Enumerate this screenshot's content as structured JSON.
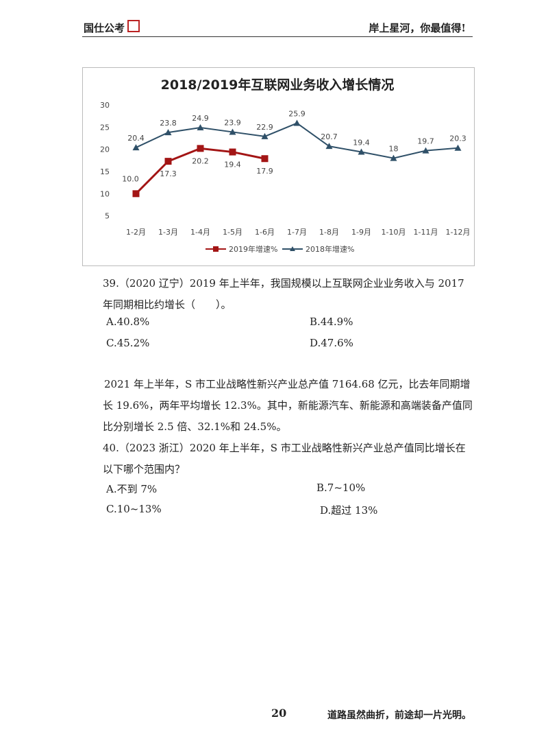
{
  "header": {
    "logo": "国仕公考",
    "slogan": "岸上星河，你最值得!"
  },
  "chart_data": {
    "type": "line",
    "title": "2018/2019年互联网业务收入增长情况",
    "categories": [
      "1-2月",
      "1-3月",
      "1-4月",
      "1-5月",
      "1-6月",
      "1-7月",
      "1-8月",
      "1-9月",
      "1-10月",
      "1-11月",
      "1-12月"
    ],
    "series": [
      {
        "name": "2019年增速%",
        "color": "#a31515",
        "marker": "square",
        "values": [
          10,
          17.3,
          20.2,
          19.4,
          17.9,
          null,
          null,
          null,
          null,
          null,
          null
        ],
        "value_labels": [
          "10.0",
          "17.3",
          "20.2",
          "19.4",
          "17.9",
          null,
          null,
          null,
          null,
          null,
          null
        ]
      },
      {
        "name": "2018年增速%",
        "color": "#2f5068",
        "marker": "triangle",
        "values": [
          20.4,
          23.8,
          24.9,
          23.9,
          22.9,
          25.9,
          20.7,
          19.4,
          18,
          19.7,
          20.3
        ]
      }
    ],
    "ylim": [
      0,
      30
    ],
    "yticks": [
      5,
      10,
      15,
      20,
      25,
      30
    ],
    "grid": false,
    "legend": "bottom"
  },
  "questions": [
    {
      "stem": "39.（2020 辽宁）2019 年上半年，我国规模以上互联网企业业务收入与 2017 年同期相比约增长（　　）。",
      "options": [
        "A.40.8%",
        "B.44.9%",
        "C.45.2%",
        "D.47.6%"
      ]
    },
    {
      "stem": "40.（2023 浙江）2020 年上半年，S 市工业战略性新兴产业总产值同比增长在以下哪个范围内？",
      "options": [
        "A.不到 7%",
        "B.7~10%",
        "C.10~13%",
        "D.超过 13%"
      ]
    }
  ],
  "passage": "2021 年上半年，S 市工业战略性新兴产业总产值 7164.68 亿元，比去年同期增长 19.6%，两年平均增长 12.3%。其中，新能源汽车、新能源和高端装备产值同比分别增长 2.5 倍、32.1%和 24.5%。",
  "footer": {
    "page": "20",
    "motto": "道路虽然曲折，前途却一片光明。"
  }
}
